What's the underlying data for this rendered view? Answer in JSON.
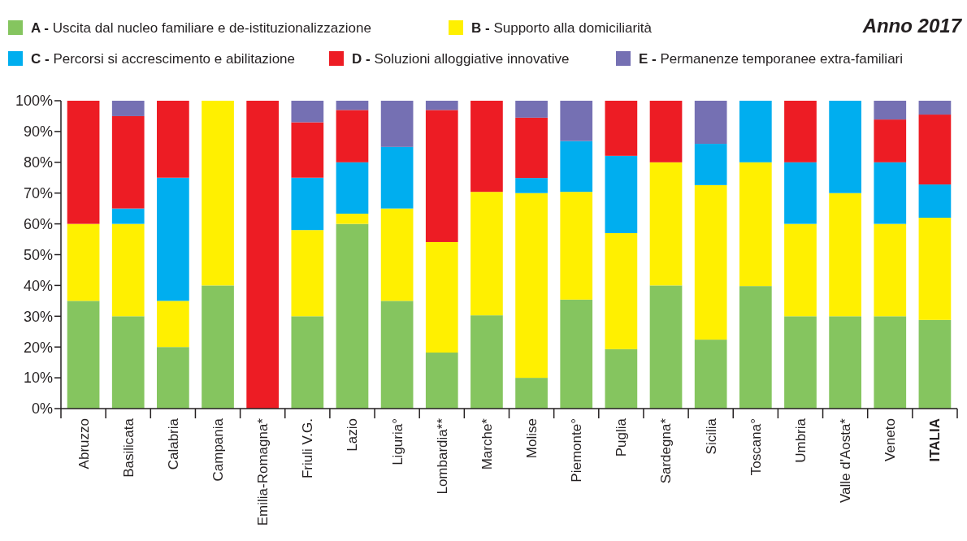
{
  "chart_data": {
    "type": "bar",
    "stacked": true,
    "title": "Anno 2017",
    "legend": "top",
    "ylim": [
      0,
      100
    ],
    "yticks": [
      {
        "value": 0,
        "label": "0%"
      },
      {
        "value": 10,
        "label": "10%"
      },
      {
        "value": 20,
        "label": "20%"
      },
      {
        "value": 30,
        "label": "30%"
      },
      {
        "value": 40,
        "label": "40%"
      },
      {
        "value": 50,
        "label": "50%"
      },
      {
        "value": 60,
        "label": "60%"
      },
      {
        "value": 70,
        "label": "70%"
      },
      {
        "value": 80,
        "label": "80%"
      },
      {
        "value": 90,
        "label": "90%"
      },
      {
        "value": 100,
        "label": "100%"
      }
    ],
    "categories": [
      "Abruzzo",
      "Basilicata",
      "Calabria",
      "Campania",
      "Emilia-Romagna*",
      "Friuli V.G.",
      "Lazio",
      "Liguria°",
      "Lombardia**",
      "Marche*",
      "Molise",
      "Piemonte°",
      "Puglia",
      "Sardegna*",
      "Sicilia",
      "Toscana°",
      "Umbria",
      "Valle d'Aosta*",
      "Veneto",
      "ITALIA"
    ],
    "series": [
      {
        "name": "A - Uscita dal nucleo familiare e de-istituzionalizzazione",
        "color": "#85c55f",
        "values": [
          35,
          30,
          20,
          40,
          0,
          30,
          60,
          35,
          18.2,
          30.3,
          10,
          35.4,
          19.3,
          40,
          22.4,
          39.8,
          30,
          30,
          30,
          28.8
        ]
      },
      {
        "name": "B - Supporto alla domiciliarità",
        "color": "#fff000",
        "values": [
          25,
          30,
          15,
          60,
          0,
          28,
          3.3,
          30,
          35.9,
          40.1,
          60,
          35,
          37.7,
          40,
          50.2,
          40.2,
          30,
          40,
          30,
          33.2
        ]
      },
      {
        "name": "C - Percorsi si accrescimento e abilitazione",
        "color": "#00aeef",
        "values": [
          0,
          5,
          40,
          0,
          0,
          17,
          16.7,
          20,
          0,
          0,
          4.9,
          16.5,
          25.1,
          0,
          13.4,
          20,
          20,
          30,
          20,
          10.8
        ]
      },
      {
        "name": "D - Soluzioni alloggiative innovative",
        "color": "#ed1c24",
        "values": [
          40,
          30,
          25,
          0,
          100,
          18,
          17,
          0,
          42.9,
          29.6,
          19.6,
          0,
          17.9,
          20,
          0,
          0,
          20,
          0,
          13.9,
          22.7
        ]
      },
      {
        "name": "E - Permanenze temporanee extra-familiari",
        "color": "#7570b3",
        "values": [
          0,
          5,
          0,
          0,
          0,
          7,
          3,
          15,
          3,
          0,
          5.5,
          13.1,
          0,
          0,
          14,
          0,
          0,
          0,
          6.1,
          4.5
        ]
      }
    ]
  }
}
